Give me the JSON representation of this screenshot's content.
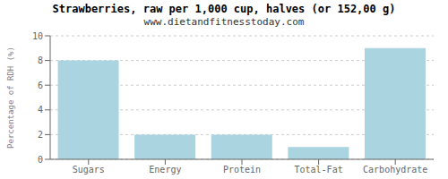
{
  "chart_data": {
    "type": "bar",
    "title": "Strawberries, raw per 1,000 cup, halves (or 152,00 g)",
    "subtitle": "www.dietandfitnesstoday.com",
    "categories": [
      "Sugars",
      "Energy",
      "Protein",
      "Total-Fat",
      "Carbohydrate"
    ],
    "values": [
      8.0,
      2.0,
      2.0,
      1.0,
      9.0
    ],
    "color": "#aad4e0",
    "ylabel": "Percentage of RDH (%)",
    "ylim": [
      0,
      10
    ],
    "yticks": [
      0,
      2,
      4,
      6,
      8,
      10
    ],
    "grid": true
  }
}
